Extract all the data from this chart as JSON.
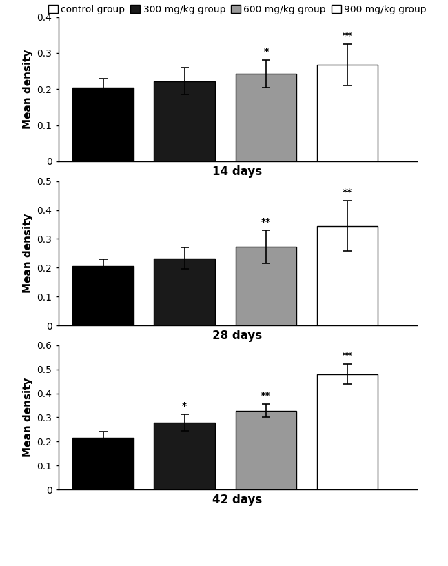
{
  "panels": [
    {
      "xlabel": "14 days",
      "ylim": [
        0,
        0.4
      ],
      "yticks": [
        0,
        0.1,
        0.2,
        0.3,
        0.4
      ],
      "values": [
        0.205,
        0.222,
        0.242,
        0.267
      ],
      "errors": [
        0.025,
        0.037,
        0.038,
        0.057
      ],
      "annotations": [
        "",
        "",
        "*",
        "**"
      ]
    },
    {
      "xlabel": "28 days",
      "ylim": [
        0,
        0.5
      ],
      "yticks": [
        0,
        0.1,
        0.2,
        0.3,
        0.4,
        0.5
      ],
      "values": [
        0.205,
        0.233,
        0.272,
        0.345
      ],
      "errors": [
        0.025,
        0.038,
        0.058,
        0.088
      ],
      "annotations": [
        "",
        "",
        "**",
        "**"
      ]
    },
    {
      "xlabel": "42 days",
      "ylim": [
        0,
        0.6
      ],
      "yticks": [
        0,
        0.1,
        0.2,
        0.3,
        0.4,
        0.5,
        0.6
      ],
      "values": [
        0.215,
        0.278,
        0.328,
        0.48
      ],
      "errors": [
        0.025,
        0.035,
        0.028,
        0.042
      ],
      "annotations": [
        "",
        "*",
        "**",
        "**"
      ]
    }
  ],
  "bar_colors": [
    "#ffffff",
    "#1a1a1a",
    "#999999",
    "#ffffff"
  ],
  "bar_edgecolors": [
    "#000000",
    "#000000",
    "#000000",
    "#000000"
  ],
  "legend_facecolors": [
    "#ffffff",
    "#1a1a1a",
    "#999999",
    "#ffffff"
  ],
  "legend_labels": [
    "control group",
    "300 mg/kg group",
    "600 mg/kg group",
    "900 mg/kg group"
  ],
  "ylabel": "Mean density",
  "bar_width": 0.75,
  "annotation_fontsize": 10,
  "axis_label_fontsize": 11,
  "tick_fontsize": 10,
  "legend_fontsize": 10,
  "xlabel_fontsize": 12
}
